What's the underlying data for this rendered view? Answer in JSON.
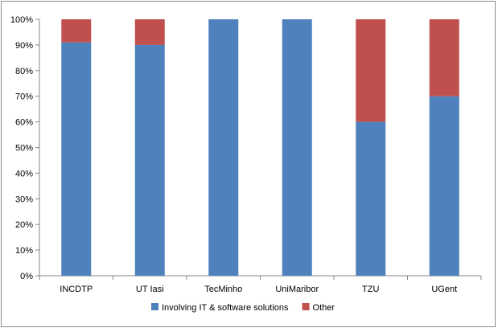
{
  "chart_data": {
    "type": "bar",
    "stacked": true,
    "percent": true,
    "categories": [
      "INCDTP",
      "UT Iasi",
      "TecMinho",
      "UniMaribor",
      "TZU",
      "UGent"
    ],
    "series": [
      {
        "name": "Involving IT & software solutions",
        "color": "#4F81BD",
        "values": [
          91,
          90,
          100,
          100,
          60,
          70
        ]
      },
      {
        "name": "Other",
        "color": "#C0504D",
        "values": [
          9,
          10,
          0,
          0,
          40,
          30
        ]
      }
    ],
    "yticks": [
      "0%",
      "10%",
      "20%",
      "30%",
      "40%",
      "50%",
      "60%",
      "70%",
      "80%",
      "90%",
      "100%"
    ],
    "ylim": [
      0,
      100
    ],
    "grid": false,
    "legend_position": "bottom",
    "title": "",
    "xlabel": "",
    "ylabel": ""
  }
}
